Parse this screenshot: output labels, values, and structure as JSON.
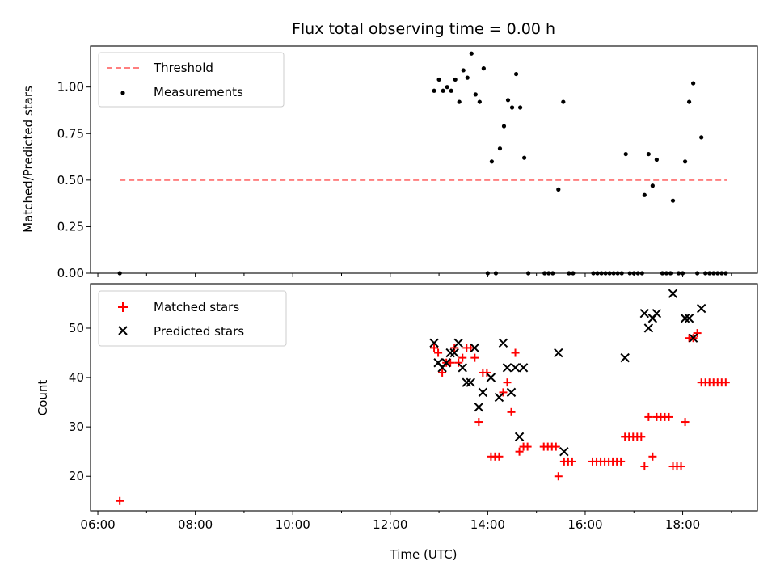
{
  "chart_data": [
    {
      "type": "scatter",
      "title": "Flux total observing time = 0.00 h",
      "xlabel": "",
      "ylabel": "Matched/Predicted stars",
      "ylim": [
        0,
        1.22
      ],
      "xlim": [
        "05:51",
        "19:32"
      ],
      "y_ticks": [
        "0.00",
        "0.25",
        "0.50",
        "0.75",
        "1.00"
      ],
      "legend_position": "upper-left",
      "series": [
        {
          "name": "Threshold",
          "kind": "dashed-line",
          "color": "#ff7f7f",
          "points": [
            [
              "06:27",
              0.5
            ],
            [
              "18:55",
              0.5
            ]
          ]
        },
        {
          "name": "Measurements",
          "kind": "dot",
          "color": "#000000",
          "points": [
            [
              "06:27",
              0.0
            ],
            [
              "12:54",
              0.98
            ],
            [
              "13:00",
              1.04
            ],
            [
              "13:05",
              0.98
            ],
            [
              "13:10",
              1.0
            ],
            [
              "13:15",
              0.98
            ],
            [
              "13:20",
              1.04
            ],
            [
              "13:25",
              0.92
            ],
            [
              "13:30",
              1.09
            ],
            [
              "13:35",
              1.05
            ],
            [
              "13:40",
              1.18
            ],
            [
              "13:45",
              0.96
            ],
            [
              "13:50",
              0.92
            ],
            [
              "13:55",
              1.1
            ],
            [
              "14:00",
              0.0
            ],
            [
              "14:05",
              0.6
            ],
            [
              "14:10",
              0.0
            ],
            [
              "14:15",
              0.67
            ],
            [
              "14:20",
              0.79
            ],
            [
              "14:25",
              0.93
            ],
            [
              "14:30",
              0.89
            ],
            [
              "14:35",
              1.07
            ],
            [
              "14:40",
              0.89
            ],
            [
              "14:45",
              0.62
            ],
            [
              "14:50",
              0.0
            ],
            [
              "15:10",
              0.0
            ],
            [
              "15:15",
              0.0
            ],
            [
              "15:20",
              0.0
            ],
            [
              "15:27",
              0.45
            ],
            [
              "15:33",
              0.92
            ],
            [
              "15:40",
              0.0
            ],
            [
              "15:45",
              0.0
            ],
            [
              "16:10",
              0.0
            ],
            [
              "16:15",
              0.0
            ],
            [
              "16:20",
              0.0
            ],
            [
              "16:25",
              0.0
            ],
            [
              "16:30",
              0.0
            ],
            [
              "16:35",
              0.0
            ],
            [
              "16:40",
              0.0
            ],
            [
              "16:45",
              0.0
            ],
            [
              "16:50",
              0.64
            ],
            [
              "16:55",
              0.0
            ],
            [
              "17:00",
              0.0
            ],
            [
              "17:05",
              0.0
            ],
            [
              "17:10",
              0.0
            ],
            [
              "17:13",
              0.42
            ],
            [
              "17:18",
              0.64
            ],
            [
              "17:23",
              0.47
            ],
            [
              "17:28",
              0.61
            ],
            [
              "17:35",
              0.0
            ],
            [
              "17:40",
              0.0
            ],
            [
              "17:45",
              0.0
            ],
            [
              "17:48",
              0.39
            ],
            [
              "17:55",
              0.0
            ],
            [
              "18:00",
              0.0
            ],
            [
              "18:03",
              0.6
            ],
            [
              "18:08",
              0.92
            ],
            [
              "18:13",
              1.02
            ],
            [
              "18:18",
              0.0
            ],
            [
              "18:23",
              0.73
            ],
            [
              "18:28",
              0.0
            ],
            [
              "18:33",
              0.0
            ],
            [
              "18:38",
              0.0
            ],
            [
              "18:43",
              0.0
            ],
            [
              "18:48",
              0.0
            ],
            [
              "18:53",
              0.0
            ]
          ]
        }
      ]
    },
    {
      "type": "scatter",
      "title": "",
      "xlabel": "Time (UTC)",
      "ylabel": "Count",
      "ylim": [
        13,
        59
      ],
      "xlim": [
        "05:51",
        "19:32"
      ],
      "x_ticks": [
        "06:00",
        "08:00",
        "10:00",
        "12:00",
        "14:00",
        "16:00",
        "18:00"
      ],
      "y_ticks": [
        "20",
        "30",
        "40",
        "50"
      ],
      "legend_position": "upper-left",
      "series": [
        {
          "name": "Matched stars",
          "kind": "plus",
          "color": "#ff0000",
          "points": [
            [
              "06:27",
              15
            ],
            [
              "12:54",
              46
            ],
            [
              "12:59",
              45
            ],
            [
              "13:04",
              41
            ],
            [
              "13:09",
              43
            ],
            [
              "13:14",
              43
            ],
            [
              "13:19",
              46
            ],
            [
              "13:24",
              43
            ],
            [
              "13:29",
              44
            ],
            [
              "13:34",
              46
            ],
            [
              "13:39",
              46
            ],
            [
              "13:44",
              44
            ],
            [
              "13:49",
              31
            ],
            [
              "13:54",
              41
            ],
            [
              "13:59",
              41
            ],
            [
              "14:04",
              24
            ],
            [
              "14:09",
              24
            ],
            [
              "14:14",
              24
            ],
            [
              "14:19",
              37
            ],
            [
              "14:24",
              39
            ],
            [
              "14:29",
              33
            ],
            [
              "14:34",
              45
            ],
            [
              "14:39",
              25
            ],
            [
              "14:44",
              26
            ],
            [
              "14:49",
              26
            ],
            [
              "15:09",
              26
            ],
            [
              "15:14",
              26
            ],
            [
              "15:19",
              26
            ],
            [
              "15:24",
              26
            ],
            [
              "15:27",
              20
            ],
            [
              "15:34",
              23
            ],
            [
              "15:39",
              23
            ],
            [
              "15:44",
              23
            ],
            [
              "16:09",
              23
            ],
            [
              "16:14",
              23
            ],
            [
              "16:19",
              23
            ],
            [
              "16:24",
              23
            ],
            [
              "16:29",
              23
            ],
            [
              "16:34",
              23
            ],
            [
              "16:39",
              23
            ],
            [
              "16:44",
              23
            ],
            [
              "16:49",
              28
            ],
            [
              "16:54",
              28
            ],
            [
              "16:59",
              28
            ],
            [
              "17:04",
              28
            ],
            [
              "17:09",
              28
            ],
            [
              "17:13",
              22
            ],
            [
              "17:18",
              32
            ],
            [
              "17:23",
              24
            ],
            [
              "17:28",
              32
            ],
            [
              "17:33",
              32
            ],
            [
              "17:38",
              32
            ],
            [
              "17:43",
              32
            ],
            [
              "17:48",
              22
            ],
            [
              "17:53",
              22
            ],
            [
              "17:58",
              22
            ],
            [
              "18:03",
              31
            ],
            [
              "18:08",
              48
            ],
            [
              "18:13",
              48
            ],
            [
              "18:18",
              49
            ],
            [
              "18:23",
              39
            ],
            [
              "18:28",
              39
            ],
            [
              "18:33",
              39
            ],
            [
              "18:38",
              39
            ],
            [
              "18:43",
              39
            ],
            [
              "18:48",
              39
            ],
            [
              "18:53",
              39
            ]
          ]
        },
        {
          "name": "Predicted stars",
          "kind": "x",
          "color": "#000000",
          "points": [
            [
              "12:54",
              47
            ],
            [
              "12:59",
              43
            ],
            [
              "13:04",
              42
            ],
            [
              "13:09",
              43
            ],
            [
              "13:14",
              45
            ],
            [
              "13:19",
              45
            ],
            [
              "13:24",
              47
            ],
            [
              "13:29",
              42
            ],
            [
              "13:34",
              39
            ],
            [
              "13:39",
              39
            ],
            [
              "13:44",
              46
            ],
            [
              "13:49",
              34
            ],
            [
              "13:54",
              37
            ],
            [
              "14:04",
              40
            ],
            [
              "14:14",
              36
            ],
            [
              "14:19",
              47
            ],
            [
              "14:24",
              42
            ],
            [
              "14:29",
              37
            ],
            [
              "14:34",
              42
            ],
            [
              "14:39",
              28
            ],
            [
              "14:44",
              42
            ],
            [
              "15:27",
              45
            ],
            [
              "15:34",
              25
            ],
            [
              "16:49",
              44
            ],
            [
              "17:13",
              53
            ],
            [
              "17:18",
              50
            ],
            [
              "17:23",
              52
            ],
            [
              "17:28",
              53
            ],
            [
              "17:48",
              57
            ],
            [
              "18:03",
              52
            ],
            [
              "18:08",
              52
            ],
            [
              "18:13",
              48
            ],
            [
              "18:23",
              54
            ]
          ]
        }
      ]
    }
  ]
}
